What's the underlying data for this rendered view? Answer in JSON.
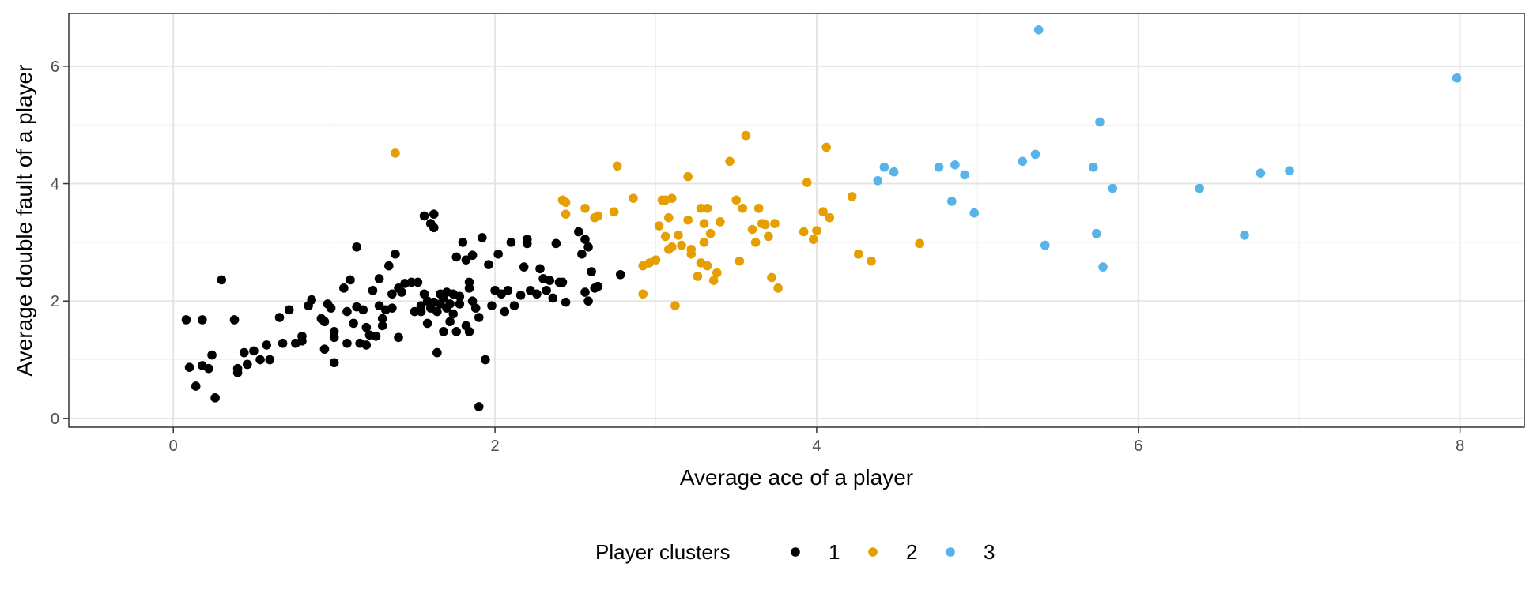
{
  "chart_data": {
    "type": "scatter",
    "xlabel": "Average ace of a player",
    "ylabel": "Average double fault of a player",
    "xlim": [
      -0.65,
      8.4
    ],
    "ylim": [
      -0.15,
      6.9
    ],
    "x_ticks": [
      0,
      2,
      4,
      6,
      8
    ],
    "y_ticks": [
      0,
      2,
      4,
      6
    ],
    "x_tick_labels": [
      "0",
      "2",
      "4",
      "6",
      "8"
    ],
    "y_tick_labels": [
      "0",
      "2",
      "4",
      "6"
    ],
    "grid": true,
    "legend": {
      "title": "Player clusters",
      "position": "bottom"
    },
    "series": [
      {
        "name": "1",
        "color": "#000000",
        "points": [
          [
            0.08,
            1.68
          ],
          [
            0.18,
            1.68
          ],
          [
            0.1,
            0.87
          ],
          [
            0.14,
            0.55
          ],
          [
            0.18,
            0.9
          ],
          [
            0.22,
            0.85
          ],
          [
            0.24,
            1.08
          ],
          [
            0.26,
            0.35
          ],
          [
            0.3,
            2.36
          ],
          [
            0.38,
            1.68
          ],
          [
            0.4,
            0.85
          ],
          [
            0.4,
            0.78
          ],
          [
            0.44,
            1.12
          ],
          [
            0.46,
            0.92
          ],
          [
            0.5,
            1.15
          ],
          [
            0.54,
            1.0
          ],
          [
            0.58,
            1.25
          ],
          [
            0.6,
            1.0
          ],
          [
            0.66,
            1.72
          ],
          [
            0.68,
            1.28
          ],
          [
            0.72,
            1.85
          ],
          [
            0.76,
            1.28
          ],
          [
            0.8,
            1.4
          ],
          [
            0.8,
            1.32
          ],
          [
            0.84,
            1.92
          ],
          [
            0.86,
            2.02
          ],
          [
            0.92,
            1.7
          ],
          [
            0.94,
            1.65
          ],
          [
            0.94,
            1.18
          ],
          [
            0.96,
            1.95
          ],
          [
            0.98,
            1.88
          ],
          [
            1.0,
            1.48
          ],
          [
            1.0,
            1.38
          ],
          [
            1.0,
            0.95
          ],
          [
            1.06,
            2.22
          ],
          [
            1.08,
            1.82
          ],
          [
            1.08,
            1.28
          ],
          [
            1.1,
            2.36
          ],
          [
            1.12,
            1.62
          ],
          [
            1.14,
            2.92
          ],
          [
            1.14,
            1.9
          ],
          [
            1.16,
            1.28
          ],
          [
            1.18,
            1.85
          ],
          [
            1.2,
            1.55
          ],
          [
            1.2,
            1.25
          ],
          [
            1.22,
            1.42
          ],
          [
            1.24,
            2.18
          ],
          [
            1.26,
            1.4
          ],
          [
            1.28,
            2.38
          ],
          [
            1.28,
            1.92
          ],
          [
            1.3,
            1.7
          ],
          [
            1.3,
            1.58
          ],
          [
            1.32,
            1.85
          ],
          [
            1.34,
            2.6
          ],
          [
            1.36,
            2.12
          ],
          [
            1.36,
            1.88
          ],
          [
            1.38,
            2.8
          ],
          [
            1.4,
            2.22
          ],
          [
            1.4,
            1.38
          ],
          [
            1.42,
            2.15
          ],
          [
            1.44,
            2.3
          ],
          [
            1.48,
            2.32
          ],
          [
            1.5,
            1.82
          ],
          [
            1.52,
            2.32
          ],
          [
            1.54,
            1.92
          ],
          [
            1.54,
            1.82
          ],
          [
            1.56,
            3.45
          ],
          [
            1.56,
            2.12
          ],
          [
            1.58,
            1.62
          ],
          [
            1.58,
            2.0
          ],
          [
            1.6,
            3.32
          ],
          [
            1.6,
            1.88
          ],
          [
            1.62,
            3.48
          ],
          [
            1.62,
            1.98
          ],
          [
            1.62,
            3.25
          ],
          [
            1.64,
            1.12
          ],
          [
            1.64,
            1.82
          ],
          [
            1.66,
            2.12
          ],
          [
            1.66,
            1.95
          ],
          [
            1.68,
            2.05
          ],
          [
            1.68,
            1.48
          ],
          [
            1.7,
            1.88
          ],
          [
            1.7,
            2.15
          ],
          [
            1.72,
            1.95
          ],
          [
            1.72,
            1.65
          ],
          [
            1.74,
            2.12
          ],
          [
            1.74,
            1.78
          ],
          [
            1.76,
            1.48
          ],
          [
            1.76,
            2.75
          ],
          [
            1.78,
            2.08
          ],
          [
            1.78,
            1.95
          ],
          [
            1.8,
            3.0
          ],
          [
            1.82,
            2.7
          ],
          [
            1.82,
            1.58
          ],
          [
            1.84,
            2.22
          ],
          [
            1.84,
            2.32
          ],
          [
            1.84,
            1.48
          ],
          [
            1.86,
            2.78
          ],
          [
            1.86,
            2.0
          ],
          [
            1.88,
            1.88
          ],
          [
            1.9,
            1.72
          ],
          [
            1.9,
            0.2
          ],
          [
            1.92,
            3.08
          ],
          [
            1.94,
            1.0
          ],
          [
            1.96,
            2.62
          ],
          [
            1.98,
            1.92
          ],
          [
            2.0,
            2.18
          ],
          [
            2.02,
            2.8
          ],
          [
            2.04,
            2.12
          ],
          [
            2.06,
            1.82
          ],
          [
            2.08,
            2.18
          ],
          [
            2.1,
            3.0
          ],
          [
            2.12,
            1.92
          ],
          [
            2.16,
            2.1
          ],
          [
            2.18,
            2.58
          ],
          [
            2.2,
            3.05
          ],
          [
            2.2,
            2.98
          ],
          [
            2.22,
            2.18
          ],
          [
            2.26,
            2.12
          ],
          [
            2.28,
            2.55
          ],
          [
            2.3,
            2.38
          ],
          [
            2.32,
            2.18
          ],
          [
            2.34,
            2.35
          ],
          [
            2.36,
            2.05
          ],
          [
            2.38,
            2.98
          ],
          [
            2.4,
            2.32
          ],
          [
            2.42,
            2.32
          ],
          [
            2.44,
            1.98
          ],
          [
            2.52,
            3.18
          ],
          [
            2.54,
            2.8
          ],
          [
            2.56,
            3.05
          ],
          [
            2.56,
            2.15
          ],
          [
            2.58,
            2.0
          ],
          [
            2.58,
            2.92
          ],
          [
            2.6,
            2.5
          ],
          [
            2.62,
            2.22
          ],
          [
            2.64,
            2.25
          ],
          [
            2.78,
            2.45
          ]
        ]
      },
      {
        "name": "2",
        "color": "#E69F00",
        "points": [
          [
            1.38,
            4.52
          ],
          [
            2.42,
            3.72
          ],
          [
            2.44,
            3.68
          ],
          [
            2.44,
            3.48
          ],
          [
            2.56,
            3.58
          ],
          [
            2.62,
            3.42
          ],
          [
            2.64,
            3.45
          ],
          [
            2.74,
            3.52
          ],
          [
            2.76,
            4.3
          ],
          [
            2.86,
            3.75
          ],
          [
            2.92,
            2.6
          ],
          [
            2.92,
            2.12
          ],
          [
            2.96,
            2.65
          ],
          [
            3.0,
            2.7
          ],
          [
            3.02,
            3.28
          ],
          [
            3.04,
            3.72
          ],
          [
            3.06,
            3.1
          ],
          [
            3.06,
            3.72
          ],
          [
            3.08,
            3.42
          ],
          [
            3.08,
            2.88
          ],
          [
            3.1,
            3.75
          ],
          [
            3.1,
            2.92
          ],
          [
            3.12,
            1.92
          ],
          [
            3.14,
            3.12
          ],
          [
            3.16,
            2.95
          ],
          [
            3.2,
            3.38
          ],
          [
            3.2,
            4.12
          ],
          [
            3.22,
            2.88
          ],
          [
            3.22,
            2.8
          ],
          [
            3.26,
            2.42
          ],
          [
            3.28,
            2.65
          ],
          [
            3.28,
            3.58
          ],
          [
            3.3,
            3.32
          ],
          [
            3.3,
            3.0
          ],
          [
            3.32,
            2.6
          ],
          [
            3.32,
            3.58
          ],
          [
            3.34,
            3.15
          ],
          [
            3.36,
            2.35
          ],
          [
            3.38,
            2.48
          ],
          [
            3.4,
            3.35
          ],
          [
            3.46,
            4.38
          ],
          [
            3.5,
            3.72
          ],
          [
            3.52,
            2.68
          ],
          [
            3.54,
            3.58
          ],
          [
            3.56,
            4.82
          ],
          [
            3.6,
            3.22
          ],
          [
            3.62,
            3.0
          ],
          [
            3.64,
            3.58
          ],
          [
            3.66,
            3.32
          ],
          [
            3.68,
            3.3
          ],
          [
            3.7,
            3.1
          ],
          [
            3.72,
            2.4
          ],
          [
            3.74,
            3.32
          ],
          [
            3.76,
            2.22
          ],
          [
            3.92,
            3.18
          ],
          [
            3.94,
            4.02
          ],
          [
            3.98,
            3.05
          ],
          [
            4.0,
            3.2
          ],
          [
            4.04,
            3.52
          ],
          [
            4.06,
            4.62
          ],
          [
            4.08,
            3.42
          ],
          [
            4.22,
            3.78
          ],
          [
            4.26,
            2.8
          ],
          [
            4.34,
            2.68
          ],
          [
            4.64,
            2.98
          ]
        ]
      },
      {
        "name": "3",
        "color": "#56B4E9",
        "points": [
          [
            4.38,
            4.05
          ],
          [
            4.42,
            4.28
          ],
          [
            4.48,
            4.2
          ],
          [
            4.76,
            4.28
          ],
          [
            4.84,
            3.7
          ],
          [
            4.86,
            4.32
          ],
          [
            4.92,
            4.15
          ],
          [
            4.98,
            3.5
          ],
          [
            5.28,
            4.38
          ],
          [
            5.36,
            4.5
          ],
          [
            5.38,
            6.62
          ],
          [
            5.42,
            2.95
          ],
          [
            5.72,
            4.28
          ],
          [
            5.74,
            3.15
          ],
          [
            5.76,
            5.05
          ],
          [
            5.78,
            2.58
          ],
          [
            5.84,
            3.92
          ],
          [
            6.38,
            3.92
          ],
          [
            6.66,
            3.12
          ],
          [
            6.76,
            4.18
          ],
          [
            6.94,
            4.22
          ],
          [
            7.98,
            5.8
          ]
        ]
      }
    ]
  }
}
